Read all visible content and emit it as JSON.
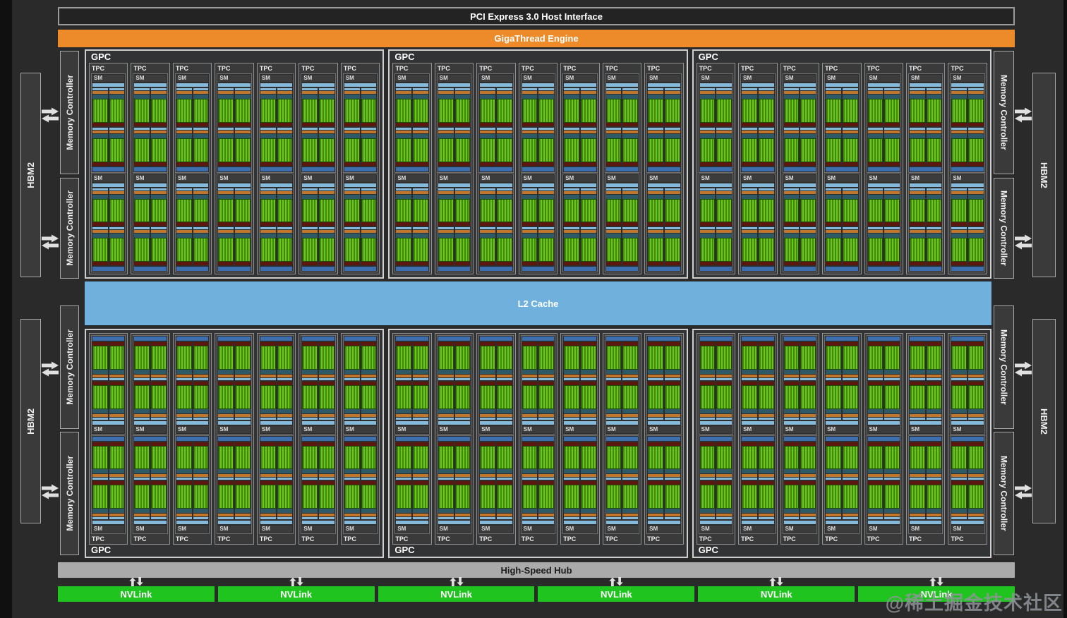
{
  "top_bars": {
    "pci": "PCI Express 3.0 Host Interface",
    "gigathread": "GigaThread Engine"
  },
  "l2_cache": {
    "label": "L2 Cache"
  },
  "high_speed_hub": {
    "label": "High-Speed Hub"
  },
  "nvlink": {
    "label": "NVLink",
    "count": 6
  },
  "memory": {
    "hbm2_label": "HBM2",
    "controller_label": "Memory Controller",
    "hbm2_per_side": 2,
    "controllers_per_side": 4,
    "sides": [
      "left",
      "right"
    ]
  },
  "gpu": {
    "gpc_label": "GPC",
    "tpc_label": "TPC",
    "sm_label": "SM",
    "gpc_rows": 2,
    "gpcs_per_row": 3,
    "tpcs_per_gpc": 7,
    "sms_per_tpc": 2,
    "units_per_sm": 2,
    "cols_per_unit": 2
  },
  "watermark": {
    "text": "@稀土掘金技术社区"
  },
  "colors": {
    "background": "#2a2a2a",
    "edge_strip": "#101010",
    "pci_fill": "#232323",
    "pci_border": "#9b9b9b",
    "gigathread_orange": "#ed8b2b",
    "l2_blue": "#6fb0dc",
    "hub_gray": "#aaaaaa",
    "nvlink_green": "#1fc41f",
    "gpc_fill": "#323334",
    "gpc_border": "#cfcfcf",
    "tpc_fill": "#3a3a3a",
    "tpc_border": "#8f8f8f",
    "sm_fill": "#2d2d2d",
    "sm_border": "#6f6f6f",
    "sm_lightblue": "#85b9da",
    "sm_orange": "#c0762b",
    "sm_teal": "#2e5a68",
    "sm_green_light": "#6ec41d",
    "sm_green_dark": "#3f8b11",
    "sm_red": "#5c170f",
    "sm_tex_blue": "#3d6fae",
    "arrow": "#e0e0e0",
    "text_dark": "#1c1c1c",
    "watermark_gray": "#8f9499"
  }
}
